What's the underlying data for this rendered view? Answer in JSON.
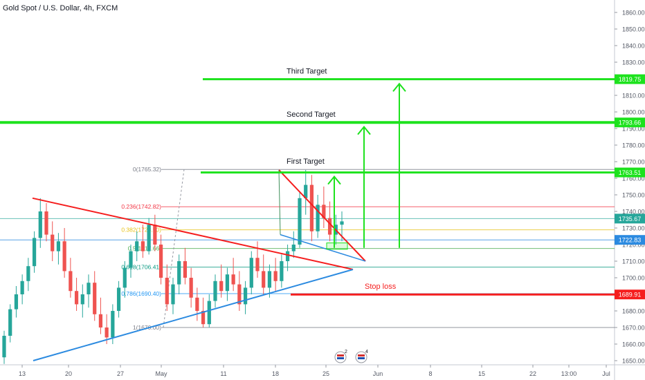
{
  "header": {
    "symbol_title": "Gold Spot / U.S. Dollar, 4h, FXCM"
  },
  "colors": {
    "up": "#26a69a",
    "down": "#ef5350",
    "target": "#1de21d",
    "red_line": "#f51d1d",
    "blue_line": "#2b8ae0",
    "axis_text": "#555a66",
    "grid": "#e0e3eb"
  },
  "chart_data": {
    "type": "candlestick",
    "ylim": [
      1648,
      1868
    ],
    "y_ticks": [
      1650,
      1660,
      1670,
      1680,
      1690,
      1700,
      1710,
      1720,
      1730,
      1740,
      1750,
      1760,
      1770,
      1780,
      1790,
      1800,
      1810,
      1820,
      1830,
      1840,
      1850,
      1860
    ],
    "x_ticks": [
      "13",
      "20",
      "27",
      "May",
      "11",
      "18",
      "25",
      "Jun",
      "8",
      "15",
      "22",
      "13:00",
      "Jul"
    ],
    "price_badges": [
      {
        "value": "1819.75",
        "price": 1819.75,
        "color": "#1de21d"
      },
      {
        "value": "1793.66",
        "price": 1793.66,
        "color": "#1de21d"
      },
      {
        "value": "1763.51",
        "price": 1763.51,
        "color": "#1de21d"
      },
      {
        "value": "1735.67",
        "price": 1735.67,
        "color": "#26a69a"
      },
      {
        "value": "1722.83",
        "price": 1722.83,
        "color": "#2b8ae0"
      },
      {
        "value": "1689.91",
        "price": 1689.91,
        "color": "#f51d1d"
      }
    ],
    "fib_levels": [
      {
        "label": "0(1765.32)",
        "price": 1765.32,
        "color": "#787b86"
      },
      {
        "label": "0.236(1742.82)",
        "price": 1742.82,
        "color": "#f23645"
      },
      {
        "label": "0.382(1728.90)",
        "price": 1728.9,
        "color": "#e8c31a"
      },
      {
        "label": "0.5(1717.66)",
        "price": 1717.66,
        "color": "#4caf50"
      },
      {
        "label": "0.618(1706.41)",
        "price": 1706.41,
        "color": "#089981"
      },
      {
        "label": "0.786(1690.40)",
        "price": 1690.4,
        "color": "#2196f3"
      },
      {
        "label": "1(1670.00)",
        "price": 1670.0,
        "color": "#787b86"
      }
    ],
    "annotations": {
      "first_target": "First Target",
      "second_target": "Second Target",
      "third_target": "Third Target",
      "stop_loss": "Stop loss"
    },
    "event_badges": [
      "2",
      "4"
    ],
    "candles": [
      [
        1652,
        1668,
        1648,
        1665
      ],
      [
        1665,
        1684,
        1661,
        1681
      ],
      [
        1681,
        1695,
        1676,
        1690
      ],
      [
        1690,
        1702,
        1684,
        1698
      ],
      [
        1698,
        1712,
        1692,
        1707
      ],
      [
        1707,
        1728,
        1703,
        1724
      ],
      [
        1724,
        1748,
        1718,
        1740
      ],
      [
        1740,
        1745,
        1722,
        1726
      ],
      [
        1726,
        1734,
        1710,
        1716
      ],
      [
        1716,
        1727,
        1708,
        1722
      ],
      [
        1722,
        1730,
        1700,
        1704
      ],
      [
        1704,
        1712,
        1688,
        1692
      ],
      [
        1692,
        1700,
        1680,
        1684
      ],
      [
        1684,
        1696,
        1676,
        1690
      ],
      [
        1690,
        1702,
        1682,
        1697
      ],
      [
        1697,
        1704,
        1674,
        1678
      ],
      [
        1678,
        1688,
        1666,
        1670
      ],
      [
        1670,
        1678,
        1660,
        1664
      ],
      [
        1664,
        1684,
        1660,
        1680
      ],
      [
        1680,
        1698,
        1676,
        1694
      ],
      [
        1694,
        1710,
        1688,
        1706
      ],
      [
        1706,
        1720,
        1700,
        1716
      ],
      [
        1716,
        1728,
        1710,
        1722
      ],
      [
        1722,
        1732,
        1712,
        1716
      ],
      [
        1716,
        1736,
        1714,
        1732
      ],
      [
        1732,
        1738,
        1716,
        1720
      ],
      [
        1720,
        1726,
        1696,
        1700
      ],
      [
        1700,
        1708,
        1680,
        1684
      ],
      [
        1684,
        1700,
        1678,
        1696
      ],
      [
        1696,
        1714,
        1690,
        1710
      ],
      [
        1710,
        1718,
        1696,
        1700
      ],
      [
        1700,
        1706,
        1682,
        1688
      ],
      [
        1688,
        1694,
        1674,
        1680
      ],
      [
        1680,
        1688,
        1670,
        1672
      ],
      [
        1672,
        1690,
        1670,
        1686
      ],
      [
        1686,
        1702,
        1682,
        1698
      ],
      [
        1698,
        1708,
        1688,
        1692
      ],
      [
        1692,
        1706,
        1686,
        1702
      ],
      [
        1702,
        1712,
        1692,
        1696
      ],
      [
        1696,
        1704,
        1680,
        1684
      ],
      [
        1684,
        1698,
        1678,
        1694
      ],
      [
        1694,
        1716,
        1690,
        1712
      ],
      [
        1712,
        1722,
        1700,
        1704
      ],
      [
        1704,
        1714,
        1690,
        1694
      ],
      [
        1694,
        1708,
        1688,
        1704
      ],
      [
        1704,
        1712,
        1692,
        1698
      ],
      [
        1698,
        1714,
        1694,
        1710
      ],
      [
        1710,
        1720,
        1704,
        1716
      ],
      [
        1716,
        1728,
        1712,
        1720
      ],
      [
        1720,
        1752,
        1718,
        1748
      ],
      [
        1748,
        1765,
        1738,
        1756
      ],
      [
        1756,
        1762,
        1722,
        1728
      ],
      [
        1728,
        1750,
        1724,
        1744
      ],
      [
        1744,
        1755,
        1730,
        1736
      ],
      [
        1736,
        1746,
        1722,
        1726
      ],
      [
        1726,
        1738,
        1720,
        1732
      ],
      [
        1732,
        1740,
        1722,
        1734
      ]
    ]
  }
}
